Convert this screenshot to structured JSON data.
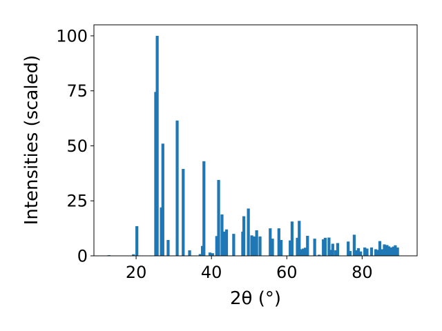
{
  "chart_data": {
    "type": "bar",
    "title": "",
    "xlabel": "2θ (°)",
    "ylabel": "Intensities (scaled)",
    "xlim": [
      8.8,
      94.6
    ],
    "ylim": [
      0,
      105
    ],
    "xticks": [
      20,
      40,
      60,
      80
    ],
    "yticks": [
      0,
      25,
      50,
      75,
      100
    ],
    "grid": false,
    "legend": "none",
    "bar_color": "#1f77b4",
    "bar_width_deg": 0.5,
    "x": [
      12.8,
      19.3,
      20.2,
      25.2,
      25.6,
      26.7,
      27.1,
      28.5,
      30.9,
      32.5,
      34.2,
      37.0,
      37.6,
      38.0,
      39.6,
      40.3,
      41.4,
      41.9,
      42.8,
      43.3,
      44.0,
      45.9,
      48.3,
      48.6,
      49.8,
      50.7,
      51.4,
      52.0,
      52.9,
      55.6,
      56.2,
      57.9,
      58.5,
      60.9,
      61.4,
      62.8,
      63.3,
      63.9,
      64.4,
      64.9,
      65.5,
      67.4,
      68.6,
      69.7,
      70.2,
      71.2,
      71.6,
      72.2,
      73.0,
      73.5,
      76.3,
      76.8,
      77.9,
      78.4,
      79.0,
      79.6,
      80.7,
      81.3,
      82.5,
      83.6,
      84.1,
      84.7,
      85.3,
      85.9,
      86.6,
      87.1,
      87.7,
      88.3,
      88.8,
      89.4
    ]
  }
}
